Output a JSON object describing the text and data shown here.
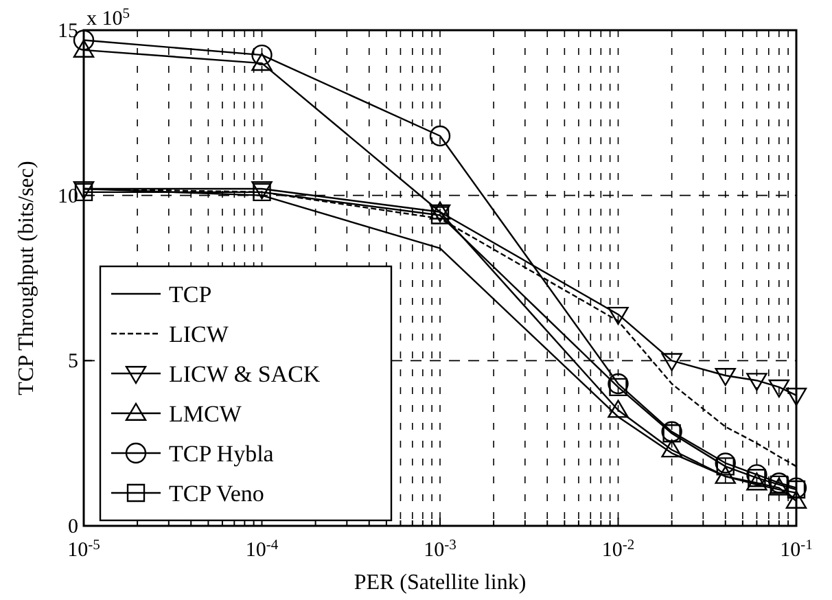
{
  "chart_data": {
    "type": "line",
    "xlabel": "PER (Satellite link)",
    "ylabel": "TCP Throughput (bits/sec)",
    "annotations": [
      "x 10$^{5}$"
    ],
    "x": [
      1e-05,
      0.0001,
      0.001,
      0.01,
      0.02,
      0.04,
      0.06,
      0.08,
      0.1
    ],
    "log": "x",
    "xlim": [
      1e-05,
      0.1
    ],
    "ylim": [
      0,
      15
    ],
    "yticks": [
      0,
      5,
      10,
      15
    ],
    "xticks": [
      {
        "value": 1e-05,
        "label": "10$^{-5}$"
      },
      {
        "value": 2e-05,
        "label": null
      },
      {
        "value": 3e-05,
        "label": null
      },
      {
        "value": 4e-05,
        "label": null
      },
      {
        "value": 5e-05,
        "label": null
      },
      {
        "value": 6e-05,
        "label": null
      },
      {
        "value": 7e-05,
        "label": null
      },
      {
        "value": 8e-05,
        "label": null
      },
      {
        "value": 9e-05,
        "label": null
      },
      {
        "value": 0.0001,
        "label": "10$^{-4}$"
      },
      {
        "value": 0.0002,
        "label": null
      },
      {
        "value": 0.0003,
        "label": null
      },
      {
        "value": 0.0004,
        "label": null
      },
      {
        "value": 0.0005,
        "label": null
      },
      {
        "value": 0.0006,
        "label": null
      },
      {
        "value": 0.0007,
        "label": null
      },
      {
        "value": 0.0008,
        "label": null
      },
      {
        "value": 0.0009,
        "label": null
      },
      {
        "value": 0.001,
        "label": "10$^{-3}$"
      },
      {
        "value": 0.002,
        "label": null
      },
      {
        "value": 0.003,
        "label": null
      },
      {
        "value": 0.004,
        "label": null
      },
      {
        "value": 0.005,
        "label": null
      },
      {
        "value": 0.006,
        "label": null
      },
      {
        "value": 0.007,
        "label": null
      },
      {
        "value": 0.008,
        "label": null
      },
      {
        "value": 0.009,
        "label": null
      },
      {
        "value": 0.01,
        "label": "10$^{-2}$"
      },
      {
        "value": 0.02,
        "label": null
      },
      {
        "value": 0.03,
        "label": null
      },
      {
        "value": 0.04,
        "label": null
      },
      {
        "value": 0.05,
        "label": null
      },
      {
        "value": 0.06,
        "label": null
      },
      {
        "value": 0.07,
        "label": null
      },
      {
        "value": 0.08,
        "label": null
      },
      {
        "value": 0.09,
        "label": null
      },
      {
        "value": 0.1,
        "label": "10$^{-1}$"
      }
    ],
    "grid": true,
    "legend": "bottom left",
    "series": [
      {
        "name": "TCP",
        "color": "#000000",
        "marker": "none",
        "line_style": "solid",
        "values": [
          10.2,
          10.0,
          8.4,
          3.3,
          2.2,
          1.5,
          1.25,
          1.1,
          1.0
        ]
      },
      {
        "name": "LICW",
        "color": "#000000",
        "marker": "none",
        "line_style": "dashed",
        "values": [
          10.2,
          10.1,
          9.3,
          6.2,
          4.3,
          3.0,
          2.5,
          2.1,
          1.8
        ]
      },
      {
        "name": "LICW & SACK",
        "color": "#000000",
        "marker": "triangle-down",
        "line_style": "solid",
        "values": [
          10.2,
          10.2,
          9.5,
          6.4,
          5.0,
          4.55,
          4.4,
          4.2,
          3.95
        ]
      },
      {
        "name": "LMCW",
        "color": "#000000",
        "marker": "triangle",
        "line_style": "solid",
        "values": [
          14.4,
          14.0,
          9.5,
          3.5,
          2.3,
          1.5,
          1.3,
          1.15,
          0.75
        ]
      },
      {
        "name": "TCP Hybla",
        "color": "#000000",
        "marker": "circle",
        "line_style": "solid",
        "values": [
          14.7,
          14.25,
          11.8,
          4.3,
          2.85,
          1.9,
          1.55,
          1.3,
          1.15
        ]
      },
      {
        "name": "TCP Veno",
        "color": "#000000",
        "marker": "square",
        "line_style": "solid",
        "values": [
          10.1,
          10.1,
          9.4,
          4.2,
          2.8,
          1.8,
          1.45,
          1.25,
          1.1
        ]
      }
    ]
  }
}
